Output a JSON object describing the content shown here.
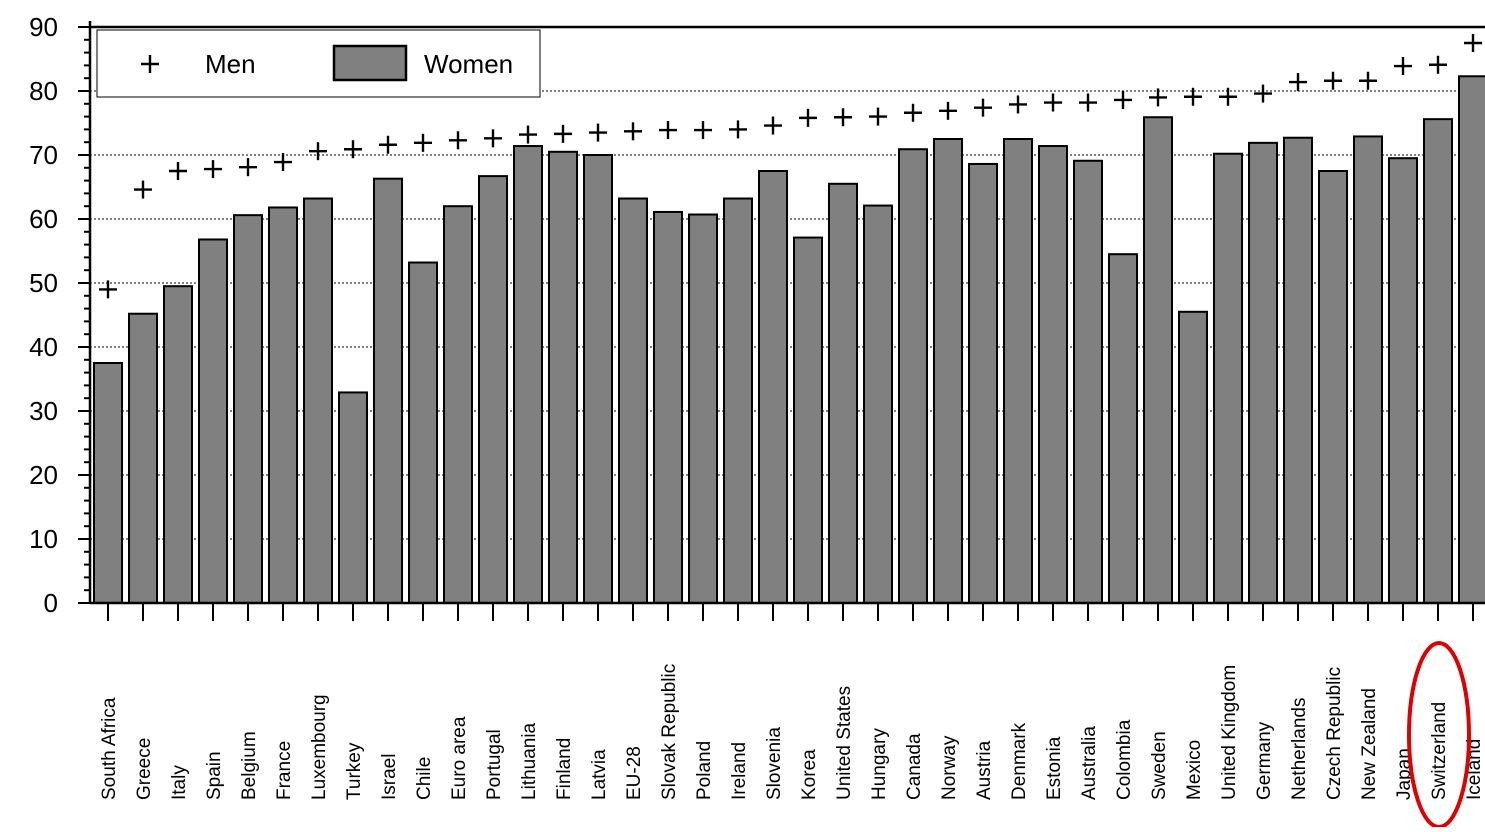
{
  "chart_data": {
    "type": "bar",
    "categories": [
      "South Africa",
      "Greece",
      "Italy",
      "Spain",
      "Belgium",
      "France",
      "Luxembourg",
      "Turkey",
      "Israel",
      "Chile",
      "Euro area",
      "Portugal",
      "Lithuania",
      "Finland",
      "Latvia",
      "EU-28",
      "Slovak Republic",
      "Poland",
      "Ireland",
      "Slovenia",
      "Korea",
      "United States",
      "Hungary",
      "Canada",
      "Norway",
      "Austria",
      "Denmark",
      "Estonia",
      "Australia",
      "Colombia",
      "Sweden",
      "Mexico",
      "United Kingdom",
      "Germany",
      "Netherlands",
      "Czech Republic",
      "New Zealand",
      "Japan",
      "Switzerland",
      "Iceland"
    ],
    "series": [
      {
        "name": "Women",
        "kind": "bar",
        "color": "#808080",
        "values": [
          37.5,
          45.2,
          49.5,
          56.8,
          60.6,
          61.8,
          63.2,
          32.9,
          66.3,
          53.2,
          62.0,
          66.7,
          71.4,
          70.5,
          70.0,
          63.2,
          61.1,
          60.7,
          63.2,
          67.5,
          57.1,
          65.5,
          62.1,
          70.9,
          72.5,
          68.6,
          72.5,
          71.4,
          69.1,
          54.5,
          75.9,
          45.5,
          70.2,
          71.9,
          72.7,
          67.5,
          72.9,
          69.5,
          75.6,
          82.3
        ]
      },
      {
        "name": "Men",
        "kind": "marker",
        "color": "#000000",
        "values": [
          49.0,
          64.6,
          67.5,
          67.8,
          68.1,
          68.9,
          70.6,
          70.9,
          71.6,
          71.9,
          72.3,
          72.6,
          73.2,
          73.3,
          73.5,
          73.7,
          73.9,
          73.9,
          74.0,
          74.6,
          75.8,
          75.9,
          76.0,
          76.6,
          76.9,
          77.4,
          77.9,
          78.2,
          78.2,
          78.6,
          79.0,
          79.1,
          79.1,
          79.6,
          81.4,
          81.6,
          81.6,
          83.9,
          84.1,
          87.5
        ]
      }
    ],
    "ylim": [
      0,
      90
    ],
    "yticks": [
      0,
      10,
      20,
      30,
      40,
      50,
      60,
      70,
      80,
      90
    ],
    "grid": true,
    "legend_position": "top-left",
    "highlight": {
      "category": "Switzerland",
      "color": "#e00000"
    }
  }
}
